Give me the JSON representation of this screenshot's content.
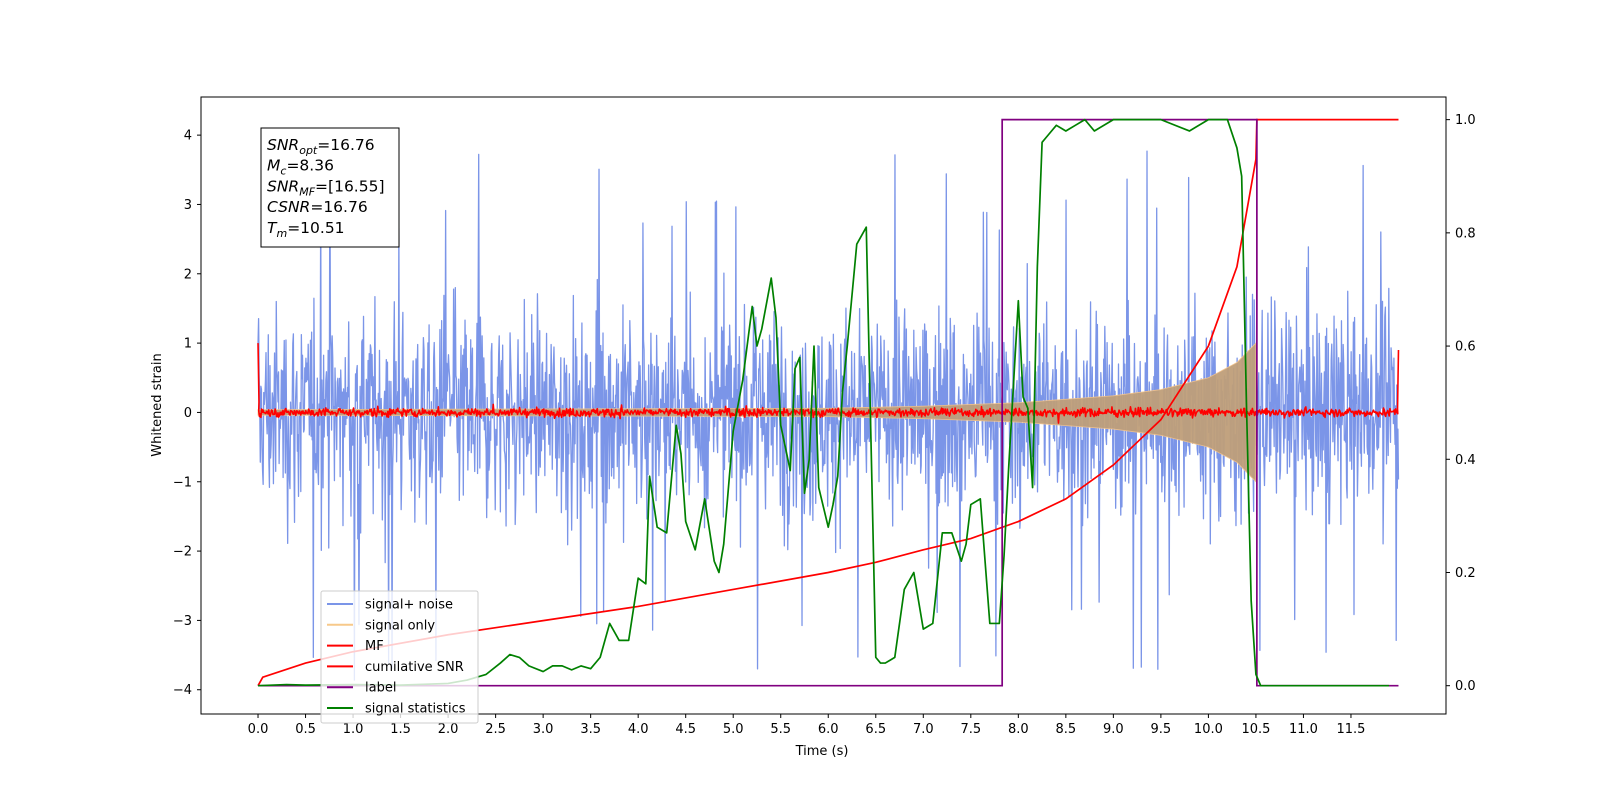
{
  "chart_data": {
    "type": "line",
    "xlabel": "Time (s)",
    "ylabel": "Whitened strain",
    "xlim": [
      -0.6,
      12.5
    ],
    "ylim": [
      -4.35,
      4.55
    ],
    "ylim_right": [
      -0.05,
      1.04
    ],
    "x_ticks": [
      "0.0",
      "0.5",
      "1.0",
      "1.5",
      "2.0",
      "2.5",
      "3.0",
      "3.5",
      "4.0",
      "4.5",
      "5.0",
      "5.5",
      "6.0",
      "6.5",
      "7.0",
      "7.5",
      "8.0",
      "8.5",
      "9.0",
      "9.5",
      "10.0",
      "10.5",
      "11.0",
      "11.5"
    ],
    "y_ticks": [
      "4",
      "3",
      "2",
      "1",
      "0",
      "−1",
      "−2",
      "−3",
      "−4"
    ],
    "y_ticks_right": [
      "1.0",
      "0.8",
      "0.6",
      "0.4",
      "0.2",
      "0.0"
    ],
    "info_box": [
      {
        "main": "SNR",
        "sub": "opt",
        "rest": "=16.76"
      },
      {
        "main": "M",
        "sub": "c",
        "rest": "=8.36"
      },
      {
        "main": "SNR",
        "sub": "MF",
        "rest": "=[16.55]"
      },
      {
        "main": "CSNR",
        "sub": "",
        "rest": "=16.76"
      },
      {
        "main": "T",
        "sub": "m",
        "rest": "=10.51"
      }
    ],
    "legend": {
      "location": "lower-left",
      "entries": [
        {
          "label": "signal+ noise",
          "color": "#7b95e8"
        },
        {
          "label": "signal only",
          "color": "#f7c98a"
        },
        {
          "label": "MF",
          "color": "#ff0000"
        },
        {
          "label": "cumilative SNR",
          "color": "#ff0000"
        },
        {
          "label": "label",
          "color": "#800080"
        },
        {
          "label": "signal statistics",
          "color": "#008000"
        }
      ]
    },
    "series": [
      {
        "name": "signal+ noise",
        "axis": "left",
        "kind": "noise band",
        "x_range": [
          0.0,
          12.0
        ],
        "envelope_typical": 1.8,
        "peak_max": 4.15,
        "peak_min": -3.95
      },
      {
        "name": "signal only",
        "axis": "left",
        "kind": "chirp envelope",
        "x": [
          0.0,
          6.0,
          7.0,
          8.0,
          9.0,
          9.5,
          10.0,
          10.3,
          10.5,
          10.51
        ],
        "y": [
          0.04,
          0.06,
          0.09,
          0.14,
          0.24,
          0.33,
          0.5,
          0.72,
          1.0,
          0.0
        ]
      },
      {
        "name": "MF",
        "axis": "left",
        "kind": "noise around zero",
        "x_range": [
          0.0,
          12.0
        ],
        "edge_start": 1.0,
        "edge_end": 0.9,
        "amplitude": 0.08
      },
      {
        "name": "cumilative SNR",
        "axis": "right",
        "x": [
          0.0,
          0.05,
          0.5,
          1.0,
          2.0,
          3.0,
          4.0,
          5.0,
          6.0,
          6.5,
          7.0,
          7.5,
          8.0,
          8.5,
          9.0,
          9.5,
          10.0,
          10.3,
          10.5,
          10.51,
          11.0,
          12.0
        ],
        "y": [
          0.0,
          0.015,
          0.04,
          0.06,
          0.09,
          0.115,
          0.14,
          0.17,
          0.2,
          0.218,
          0.24,
          0.26,
          0.29,
          0.33,
          0.39,
          0.47,
          0.6,
          0.74,
          0.93,
          1.0,
          1.0,
          1.0
        ]
      },
      {
        "name": "label",
        "axis": "right",
        "x": [
          0.0,
          7.83,
          7.83,
          10.51,
          10.51,
          12.0
        ],
        "y": [
          0.0,
          0.0,
          1.0,
          1.0,
          0.0,
          0.0
        ]
      },
      {
        "name": "signal statistics",
        "axis": "right",
        "x": [
          0.0,
          0.3,
          0.5,
          1.0,
          1.5,
          2.0,
          2.2,
          2.4,
          2.55,
          2.65,
          2.75,
          2.85,
          3.0,
          3.1,
          3.2,
          3.3,
          3.4,
          3.5,
          3.6,
          3.7,
          3.8,
          3.9,
          4.0,
          4.08,
          4.12,
          4.2,
          4.3,
          4.4,
          4.45,
          4.5,
          4.6,
          4.7,
          4.8,
          4.85,
          4.9,
          5.0,
          5.1,
          5.2,
          5.25,
          5.3,
          5.4,
          5.45,
          5.5,
          5.6,
          5.65,
          5.7,
          5.75,
          5.8,
          5.85,
          5.9,
          6.0,
          6.05,
          6.1,
          6.15,
          6.2,
          6.3,
          6.4,
          6.5,
          6.55,
          6.6,
          6.7,
          6.8,
          6.9,
          7.0,
          7.1,
          7.2,
          7.3,
          7.4,
          7.45,
          7.5,
          7.6,
          7.7,
          7.75,
          7.8,
          7.85,
          7.9,
          8.0,
          8.05,
          8.1,
          8.15,
          8.2,
          8.25,
          8.3,
          8.4,
          8.5,
          8.6,
          8.7,
          8.8,
          9.0,
          9.2,
          9.5,
          9.8,
          10.0,
          10.2,
          10.3,
          10.35,
          10.4,
          10.45,
          10.5,
          10.55,
          10.6,
          11.0,
          11.5,
          11.9
        ],
        "y": [
          0.0,
          0.002,
          0.001,
          0.002,
          0.001,
          0.004,
          0.01,
          0.02,
          0.04,
          0.055,
          0.05,
          0.035,
          0.025,
          0.035,
          0.035,
          0.028,
          0.035,
          0.03,
          0.05,
          0.11,
          0.08,
          0.08,
          0.19,
          0.18,
          0.37,
          0.28,
          0.27,
          0.46,
          0.41,
          0.29,
          0.24,
          0.33,
          0.22,
          0.2,
          0.25,
          0.45,
          0.54,
          0.67,
          0.6,
          0.63,
          0.72,
          0.65,
          0.46,
          0.38,
          0.56,
          0.58,
          0.34,
          0.4,
          0.6,
          0.35,
          0.28,
          0.32,
          0.37,
          0.52,
          0.6,
          0.78,
          0.81,
          0.05,
          0.04,
          0.04,
          0.05,
          0.17,
          0.2,
          0.1,
          0.11,
          0.27,
          0.27,
          0.22,
          0.25,
          0.32,
          0.33,
          0.11,
          0.11,
          0.11,
          0.23,
          0.39,
          0.68,
          0.51,
          0.49,
          0.35,
          0.74,
          0.96,
          0.97,
          0.99,
          0.98,
          0.99,
          1.0,
          0.98,
          1.0,
          1.0,
          1.0,
          0.98,
          1.0,
          1.0,
          0.95,
          0.9,
          0.5,
          0.15,
          0.02,
          0.0,
          0.0,
          0.0,
          0.0,
          0.0
        ]
      }
    ]
  }
}
